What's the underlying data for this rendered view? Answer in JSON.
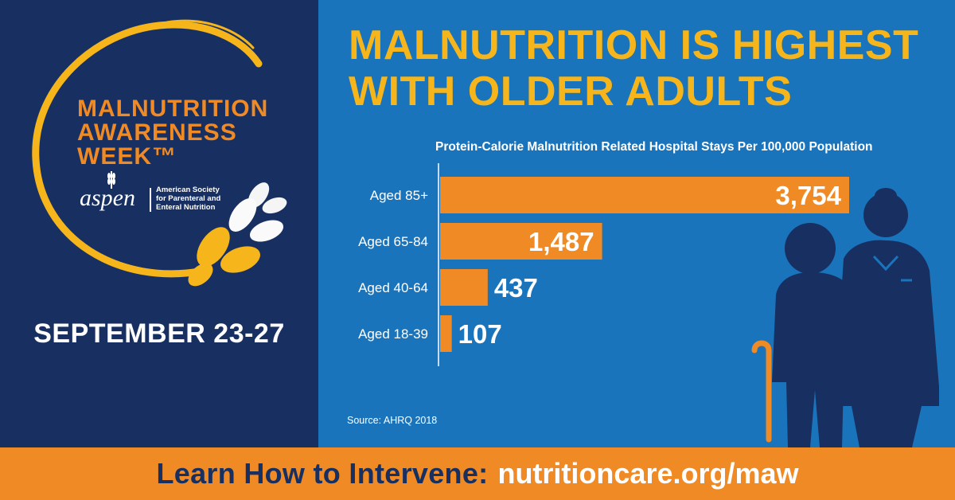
{
  "event": {
    "title_lines": [
      "MALNUTRITION",
      "AWARENESS",
      "WEEK™"
    ],
    "org_logo_text": "aspen",
    "org_name_lines": [
      "American Society",
      "for Parenteral and",
      "Enteral Nutrition"
    ],
    "date": "SEPTEMBER 23-27"
  },
  "chart_data": {
    "type": "bar",
    "orientation": "horizontal",
    "title": "MALNUTRITION IS HIGHEST WITH OLDER ADULTS",
    "title_lines": [
      "MALNUTRITION IS HIGHEST",
      "WITH OLDER ADULTS"
    ],
    "subtitle": "Protein-Calorie Malnutrition Related Hospital Stays Per 100,000 Population",
    "categories": [
      "Aged 85+",
      "Aged 65-84",
      "Aged 40-64",
      "Aged 18-39"
    ],
    "values": [
      3754,
      1487,
      437,
      107
    ],
    "value_labels": [
      "3,754",
      "1,487",
      "437",
      "107"
    ],
    "xlim": [
      0,
      3754
    ],
    "source": "Source: AHRQ 2018",
    "bar_color": "#f08a24",
    "grid": false,
    "legend": "none"
  },
  "cta": {
    "text": "Learn How to Intervene:",
    "url": "nutritioncare.org/maw"
  },
  "colors": {
    "navy": "#173061",
    "blue": "#1a74bc",
    "orange": "#f08a24",
    "gold": "#f5b51b",
    "white": "#ffffff"
  },
  "icons": [
    "wheat-logo-icon",
    "elderly-with-caregiver-icon"
  ]
}
